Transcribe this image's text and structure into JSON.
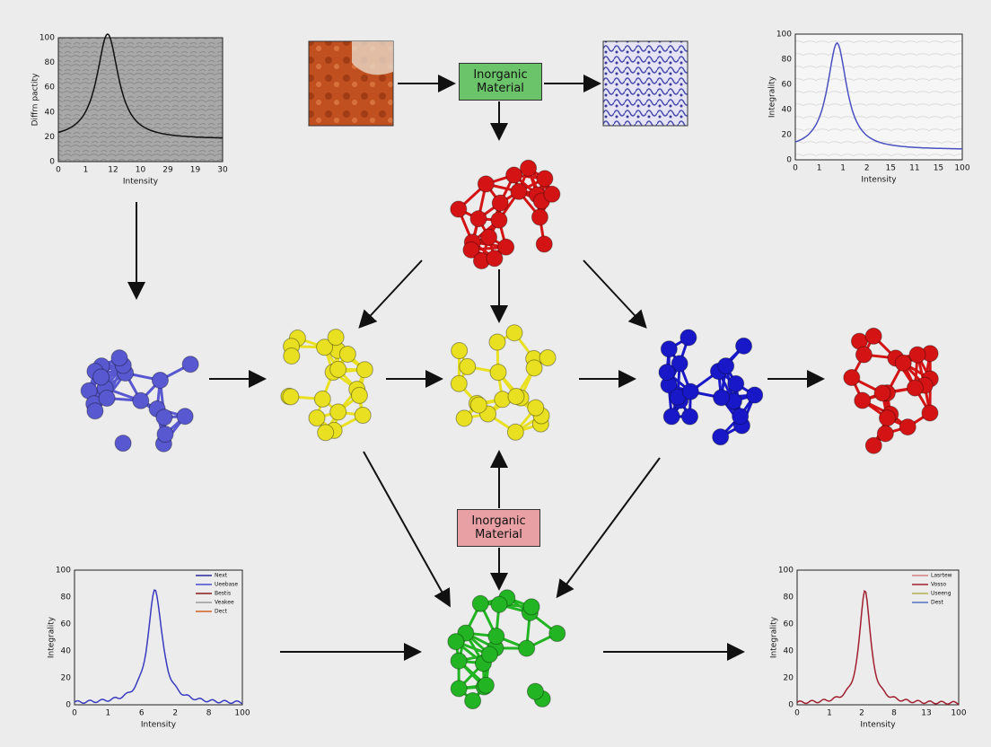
{
  "top_box": {
    "label": "Inorganic Material"
  },
  "middle_box": {
    "label": "Inorganic Material"
  },
  "plots": [
    {
      "ylabel": "Diffrn pactity",
      "xlabel": "Intensity",
      "xticks": [
        "0",
        "1",
        "12",
        "10",
        "29",
        "19",
        "30"
      ],
      "yticks": [
        "100",
        "80",
        "60",
        "40",
        "20",
        "0"
      ],
      "legend": []
    },
    {
      "ylabel": "Integrality",
      "xlabel": "Intensity",
      "xticks": [
        "0",
        "1",
        "1",
        "2",
        "15",
        "11",
        "15",
        "100"
      ],
      "yticks": [
        "100",
        "80",
        "60",
        "40",
        "20",
        "0"
      ],
      "legend": []
    },
    {
      "ylabel": "Integrality",
      "xlabel": "Intensity",
      "xticks": [
        "0",
        "1",
        "6",
        "2",
        "8",
        "100"
      ],
      "yticks": [
        "100",
        "80",
        "60",
        "40",
        "20",
        "0"
      ],
      "legend": [
        "Next",
        "Ueebase",
        "Bestis",
        "Veakee",
        "Dect"
      ]
    },
    {
      "ylabel": "Integrality",
      "xlabel": "Intensity",
      "xticks": [
        "0",
        "1",
        "2",
        "8",
        "13",
        "100"
      ],
      "yticks": [
        "100",
        "80",
        "60",
        "40",
        "20",
        "0"
      ],
      "legend": [
        "Lasrtew",
        "Vosso",
        "Useeng",
        "Dest"
      ]
    }
  ]
}
